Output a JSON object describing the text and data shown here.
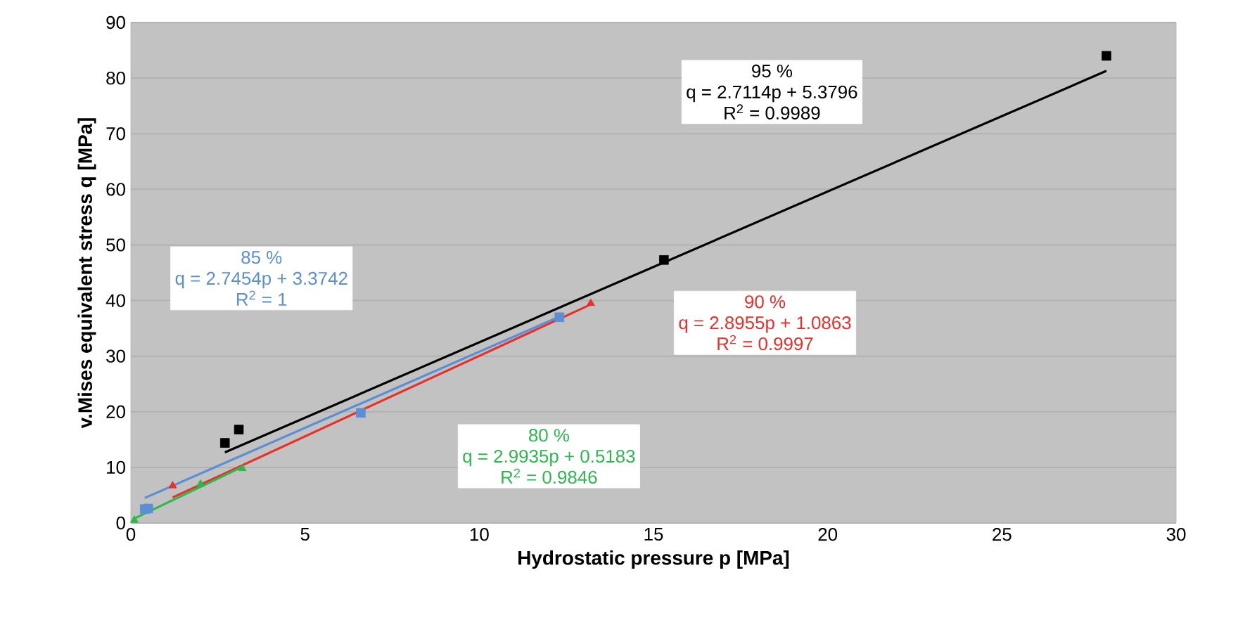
{
  "chart_data": {
    "type": "scatter",
    "xlabel": "Hydrostatic pressure p [MPa]",
    "ylabel": "v.Mises equivalent stress q [MPa]",
    "xlim": [
      0,
      30
    ],
    "xticks": [
      0,
      5,
      10,
      15,
      20,
      25,
      30
    ],
    "ylim": [
      0,
      90
    ],
    "yticks": [
      0,
      10,
      20,
      30,
      40,
      50,
      60,
      70,
      80,
      90
    ],
    "grid": "y",
    "series": [
      {
        "color": "#000000",
        "marker": "square",
        "x": [
          2.7,
          3.1,
          15.3,
          28
        ],
        "values": [
          14.4,
          16.8,
          47.3,
          84
        ]
      },
      {
        "color": "#5b8fd4",
        "marker": "square",
        "x": [
          0.4,
          0.5,
          6.6,
          12.3
        ],
        "values": [
          2.5,
          2.6,
          19.8,
          37
        ]
      },
      {
        "color": "#e8312a",
        "marker": "triangle",
        "x": [
          1.2,
          13.2
        ],
        "values": [
          6.7,
          39.5
        ]
      },
      {
        "color": "#2db84d",
        "marker": "triangle",
        "x": [
          0.1,
          2,
          3.2
        ],
        "values": [
          0.5,
          7,
          9.8
        ]
      },
      {
        "type": "line",
        "name": "95 %",
        "color": "#000000",
        "x": [
          2.7,
          28
        ],
        "values": [
          12.7,
          81.3
        ]
      },
      {
        "type": "line",
        "name": "85 %",
        "color": "#5b8fd4",
        "x": [
          0.4,
          12.3
        ],
        "values": [
          4.5,
          37.1
        ]
      },
      {
        "type": "line",
        "name": "90 %",
        "color": "#e8312a",
        "x": [
          1.2,
          13.2
        ],
        "values": [
          4.6,
          39.3
        ]
      },
      {
        "type": "line",
        "name": "80 %",
        "color": "#2db84d",
        "x": [
          0.1,
          3.2
        ],
        "values": [
          0.8,
          10.1
        ]
      }
    ],
    "annotations": [
      "q = 2.7114p + 5.3796",
      "R$^{2}$ = 0.9989",
      "q = 2.7454p + 3.3742",
      "R$^{2}$ = 1",
      "q = 2.8955p + 1.0863",
      "R$^{2}$ = 0.9997",
      "q = 2.9935p + 0.5183",
      "R$^{2}$ = 0.9846"
    ]
  }
}
